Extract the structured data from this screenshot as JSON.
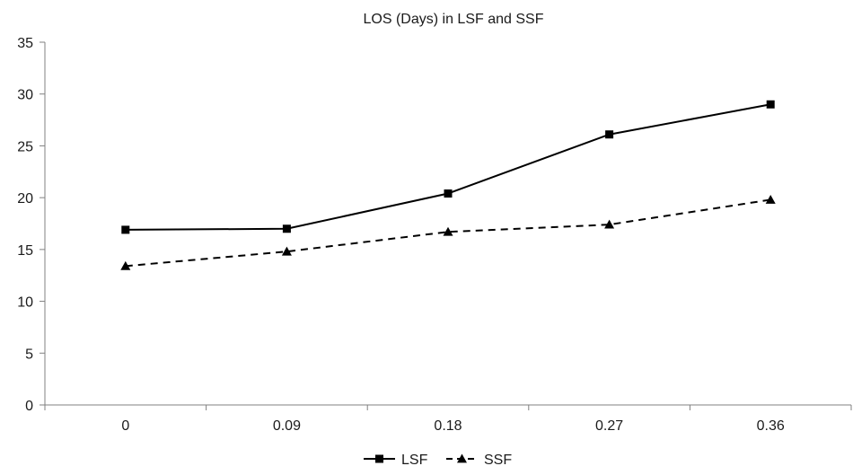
{
  "chart_data": {
    "type": "line",
    "title": "LOS (Days) in LSF and SSF",
    "xlabel": "",
    "ylabel": "",
    "categories": [
      "0",
      "0.09",
      "0.18",
      "0.27",
      "0.36"
    ],
    "ylim": [
      0,
      35
    ],
    "yticks": [
      "0",
      "5",
      "10",
      "15",
      "20",
      "25",
      "30",
      "35"
    ],
    "grid": false,
    "legend_position": "bottom",
    "series": [
      {
        "name": "LSF",
        "values": [
          16.9,
          17.0,
          20.4,
          26.1,
          29.0
        ],
        "line_style": "solid",
        "marker": "square",
        "color": "#000000"
      },
      {
        "name": "SSF",
        "values": [
          13.4,
          14.8,
          16.7,
          17.4,
          19.8
        ],
        "line_style": "dashed",
        "marker": "triangle",
        "color": "#000000"
      }
    ]
  }
}
